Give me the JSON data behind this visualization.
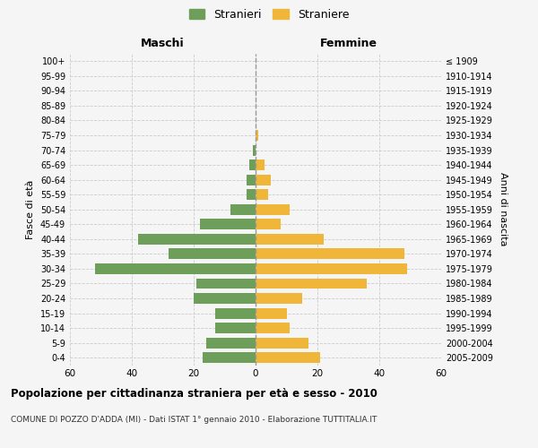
{
  "age_groups": [
    "0-4",
    "5-9",
    "10-14",
    "15-19",
    "20-24",
    "25-29",
    "30-34",
    "35-39",
    "40-44",
    "45-49",
    "50-54",
    "55-59",
    "60-64",
    "65-69",
    "70-74",
    "75-79",
    "80-84",
    "85-89",
    "90-94",
    "95-99",
    "100+"
  ],
  "birth_years": [
    "2005-2009",
    "2000-2004",
    "1995-1999",
    "1990-1994",
    "1985-1989",
    "1980-1984",
    "1975-1979",
    "1970-1974",
    "1965-1969",
    "1960-1964",
    "1955-1959",
    "1950-1954",
    "1945-1949",
    "1940-1944",
    "1935-1939",
    "1930-1934",
    "1925-1929",
    "1920-1924",
    "1915-1919",
    "1910-1914",
    "≤ 1909"
  ],
  "maschi": [
    17,
    16,
    13,
    13,
    20,
    19,
    52,
    28,
    38,
    18,
    8,
    3,
    3,
    2,
    1,
    0,
    0,
    0,
    0,
    0,
    0
  ],
  "femmine": [
    21,
    17,
    11,
    10,
    15,
    36,
    49,
    48,
    22,
    8,
    11,
    4,
    5,
    3,
    0,
    1,
    0,
    0,
    0,
    0,
    0
  ],
  "maschi_color": "#6d9e5a",
  "femmine_color": "#f0b63a",
  "title": "Popolazione per cittadinanza straniera per età e sesso - 2010",
  "subtitle": "COMUNE DI POZZO D'ADDA (MI) - Dati ISTAT 1° gennaio 2010 - Elaborazione TUTTITALIA.IT",
  "xlabel_left": "Maschi",
  "xlabel_right": "Femmine",
  "ylabel_left": "Fasce di età",
  "ylabel_right": "Anni di nascita",
  "legend_maschi": "Stranieri",
  "legend_femmine": "Straniere",
  "xlim": 60,
  "background_color": "#f5f5f5",
  "grid_color": "#cccccc"
}
